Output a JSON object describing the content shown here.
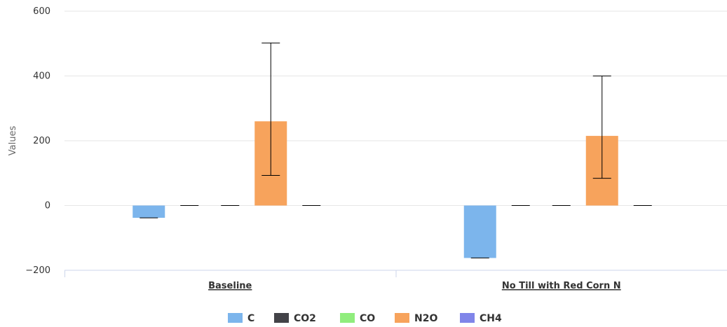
{
  "chart_data": {
    "type": "bar",
    "ylabel": "Values",
    "xlabel": "",
    "ylim": [
      -200,
      600
    ],
    "yticks": [
      -200,
      0,
      200,
      400,
      600
    ],
    "y_gridlines": true,
    "legend_position": "bottom-center",
    "categories": [
      "Baseline",
      "No Till with Red Corn N"
    ],
    "series": [
      {
        "name": "C",
        "color": "#7cb5ec",
        "values": [
          -38,
          -162
        ],
        "errors": [
          [
            -38,
            -38
          ],
          [
            -162,
            -162
          ]
        ]
      },
      {
        "name": "CO2",
        "color": "#434348",
        "values": [
          0,
          0
        ],
        "errors": [
          [
            0,
            0
          ],
          [
            0,
            0
          ]
        ]
      },
      {
        "name": "CO",
        "color": "#90ed7d",
        "values": [
          0,
          0
        ],
        "errors": [
          [
            0,
            0
          ],
          [
            0,
            0
          ]
        ]
      },
      {
        "name": "N2O",
        "color": "#f7a35c",
        "values": [
          260,
          215
        ],
        "errors": [
          [
            93,
            502
          ],
          [
            84,
            400
          ]
        ]
      },
      {
        "name": "CH4",
        "color": "#8085e9",
        "values": [
          0,
          0
        ],
        "errors": [
          [
            0,
            0
          ],
          [
            0,
            0
          ]
        ]
      }
    ]
  }
}
